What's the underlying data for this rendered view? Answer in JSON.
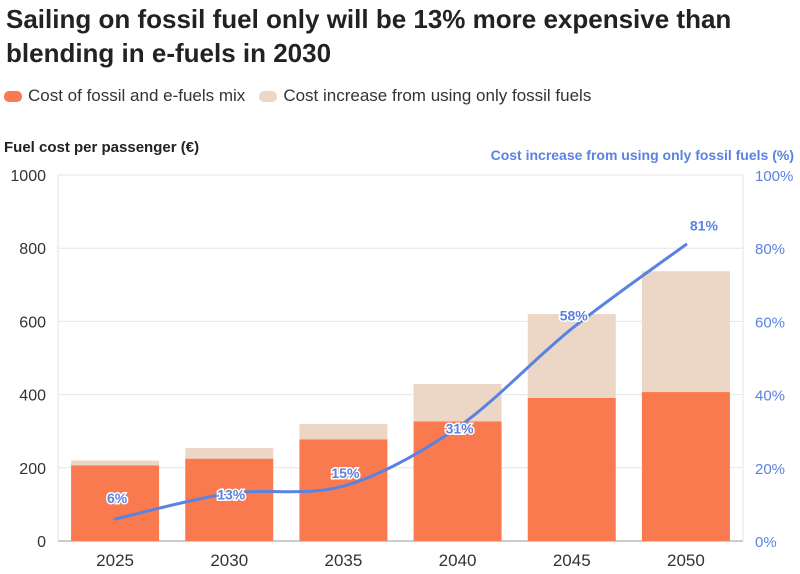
{
  "title": "Sailing on fossil fuel only will be 13% more expensive than blending in e-fuels in 2030",
  "colors": {
    "mix": "#fa7a50",
    "increase": "#ecd7c6",
    "line": "#5a82e0",
    "grid": "#e6e6e6",
    "axis_text": "#333333"
  },
  "chart_data": {
    "type": "bar",
    "stacked": true,
    "categories": [
      "2025",
      "2030",
      "2035",
      "2040",
      "2045",
      "2050"
    ],
    "series": [
      {
        "name": "Cost of fossil and e-fuels mix",
        "values": [
          207,
          225,
          278,
          327,
          391,
          407
        ]
      },
      {
        "name": "Cost increase from using only fossil fuels",
        "values": [
          13,
          29,
          42,
          102,
          229,
          330
        ]
      }
    ],
    "line_series": {
      "name": "Cost increase from using only fossil fuels (%)",
      "values": [
        6,
        13,
        15,
        31,
        58,
        81
      ],
      "labels": [
        "6%",
        "13%",
        "15%",
        "31%",
        "58%",
        "81%"
      ]
    },
    "ylabel": "Fuel cost per passenger (€)",
    "y2label": "Cost increase from using only fossil fuels (%)",
    "ylim": [
      0,
      1000
    ],
    "y2lim": [
      0,
      100
    ],
    "yticks": [
      "0",
      "200",
      "400",
      "600",
      "800",
      "1000"
    ],
    "y2ticks": [
      "0%",
      "20%",
      "40%",
      "60%",
      "80%",
      "100%"
    ],
    "legend": [
      "Cost of fossil and e-fuels mix",
      "Cost increase from using only fossil fuels"
    ],
    "legend_position": "top-left",
    "grid": true
  }
}
